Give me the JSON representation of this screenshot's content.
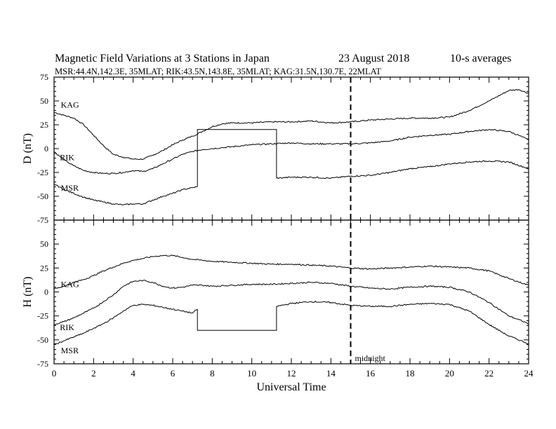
{
  "header": {
    "title": "Magnetic Field Variations at 3 Stations in Japan",
    "date": "23  August  2018",
    "averaging": "10-s averages",
    "stations_line": "MSR:44.4N,142.3E, 35MLAT;  RIK:43.5N,143.8E, 35MLAT;  KAG:31.5N,130.7E, 22MLAT"
  },
  "chart_data": [
    {
      "type": "line",
      "panel": "top",
      "ylabel": "D (nT)",
      "xlabel": "",
      "xlim": [
        0,
        24
      ],
      "ylim": [
        -75,
        75
      ],
      "yticks": [
        75,
        50,
        25,
        0,
        -25,
        -50,
        -75
      ],
      "xticks": [],
      "grid": false,
      "series": [
        {
          "name": "KAG",
          "x": [
            0,
            0.5,
            1,
            1.5,
            2,
            2.5,
            3,
            3.5,
            4,
            4.5,
            5,
            5.5,
            6,
            6.5,
            7,
            7.5,
            8,
            8.5,
            9,
            10,
            11,
            12,
            13,
            14,
            15,
            16,
            17,
            18,
            19,
            20,
            21,
            22,
            23,
            23.5,
            24
          ],
          "values": [
            38,
            35,
            32,
            25,
            14,
            3,
            -6,
            -9,
            -11,
            -11,
            -7,
            -2,
            4,
            9,
            13,
            18,
            23,
            26,
            27,
            27,
            28,
            28,
            29,
            27,
            28,
            30,
            31,
            32,
            32,
            33,
            40,
            50,
            61,
            62,
            58
          ]
        },
        {
          "name": "RIK",
          "x": [
            0,
            0.5,
            1,
            1.5,
            2,
            2.5,
            3,
            3.5,
            4,
            4.5,
            5,
            5.5,
            6,
            6.5,
            7,
            7.5,
            8,
            8.5,
            9,
            10,
            11,
            12,
            13,
            14,
            15,
            16,
            17,
            18,
            19,
            20,
            21,
            22,
            23,
            23.5,
            24
          ],
          "values": [
            -3,
            -12,
            -18,
            -23,
            -25,
            -26,
            -26,
            -25,
            -23,
            -24,
            -21,
            -16,
            -11,
            -6,
            -3,
            -1,
            0,
            1,
            2,
            4,
            5,
            6,
            5,
            5,
            5,
            6,
            8,
            12,
            14,
            15,
            18,
            20,
            18,
            14,
            9
          ]
        },
        {
          "name": "MSR",
          "x": [
            0,
            0.5,
            1,
            1.5,
            2,
            2.5,
            3,
            3.5,
            4,
            4.5,
            5,
            5.5,
            6,
            6.5,
            7,
            7.25
          ],
          "values": [
            -37,
            -43,
            -47,
            -51,
            -54,
            -56,
            -58,
            -59,
            -58,
            -58,
            -54,
            -50,
            -47,
            -43,
            -41,
            -40
          ]
        },
        {
          "name": "MSR",
          "x": [
            7.25,
            7.25,
            11.25,
            11.25
          ],
          "values": [
            -40,
            20,
            20,
            -31
          ]
        },
        {
          "name": "MSR",
          "x": [
            11.25,
            12,
            13,
            14,
            15,
            16,
            17,
            18,
            19,
            20,
            21,
            22,
            23,
            24
          ],
          "values": [
            -31,
            -30,
            -30,
            -31,
            -29,
            -28,
            -25,
            -21,
            -19,
            -16,
            -14,
            -13,
            -14,
            -21
          ]
        }
      ]
    },
    {
      "type": "line",
      "panel": "bottom",
      "ylabel": "H (nT)",
      "xlabel": "Universal Time",
      "xlim": [
        0,
        24
      ],
      "ylim": [
        -75,
        75
      ],
      "yticks": [
        75,
        50,
        25,
        0,
        -25,
        -50,
        -75
      ],
      "xticks": [
        0,
        2,
        4,
        6,
        8,
        10,
        12,
        14,
        16,
        18,
        20,
        22,
        24
      ],
      "grid": false,
      "series": [
        {
          "name": "KAG",
          "x": [
            0,
            0.5,
            1,
            1.5,
            2,
            2.5,
            3,
            3.5,
            4,
            4.5,
            5,
            5.5,
            6,
            6.5,
            7,
            7.5,
            8,
            9,
            10,
            11,
            12,
            13,
            14,
            15,
            16,
            17,
            18,
            19,
            20,
            21,
            22,
            23,
            24
          ],
          "values": [
            3,
            6,
            10,
            13,
            17,
            22,
            26,
            30,
            33,
            35,
            37,
            38,
            38,
            36,
            34,
            33,
            32,
            31,
            30,
            29,
            29,
            28,
            27,
            25,
            24,
            25,
            26,
            27,
            26,
            25,
            22,
            14,
            7
          ]
        },
        {
          "name": "RIK",
          "x": [
            0,
            0.5,
            1,
            1.5,
            2,
            2.5,
            3,
            3.5,
            4,
            4.5,
            5,
            5.5,
            6,
            6.5,
            7,
            7.5,
            8,
            9,
            10,
            11,
            12,
            13,
            14,
            15,
            16,
            17,
            18,
            19,
            20,
            21,
            22,
            23,
            24
          ],
          "values": [
            -34,
            -31,
            -27,
            -22,
            -17,
            -10,
            -3,
            6,
            11,
            12,
            10,
            6,
            4,
            5,
            7,
            7,
            6,
            7,
            8,
            8,
            9,
            10,
            9,
            6,
            4,
            3,
            5,
            6,
            5,
            0,
            -11,
            -25,
            -33
          ]
        },
        {
          "name": "MSR",
          "x": [
            0,
            0.5,
            1,
            1.5,
            2,
            2.5,
            3,
            3.5,
            4,
            4.5,
            5,
            5.5,
            6,
            6.5,
            7,
            7.25
          ],
          "values": [
            -55,
            -51,
            -47,
            -43,
            -38,
            -33,
            -27,
            -20,
            -14,
            -13,
            -14,
            -16,
            -18,
            -20,
            -22,
            -18
          ]
        },
        {
          "name": "MSR",
          "x": [
            7.25,
            7.25,
            11.25,
            11.25
          ],
          "values": [
            -18,
            -40,
            -40,
            -15
          ]
        },
        {
          "name": "MSR",
          "x": [
            11.25,
            12,
            13,
            14,
            15,
            16,
            17,
            18,
            19,
            20,
            21,
            22,
            23,
            24
          ],
          "values": [
            -15,
            -12,
            -10,
            -11,
            -14,
            -15,
            -15,
            -13,
            -12,
            -13,
            -20,
            -34,
            -46,
            -54
          ]
        }
      ]
    }
  ],
  "labels": {
    "top": [
      {
        "text": "KAG",
        "x": 0.2,
        "y": 43
      },
      {
        "text": "RIK",
        "x": 0.15,
        "y": -12
      },
      {
        "text": "MSR",
        "x": 0.2,
        "y": -44
      }
    ],
    "bottom": [
      {
        "text": "KAG",
        "x": 0.2,
        "y": 5
      },
      {
        "text": "RIK",
        "x": 0.15,
        "y": -40
      },
      {
        "text": "MSR",
        "x": 0.2,
        "y": -64
      }
    ]
  },
  "midnight": {
    "x": 15,
    "label": "midnight"
  },
  "colors": {
    "line": "#000000",
    "background": "#ffffff"
  }
}
